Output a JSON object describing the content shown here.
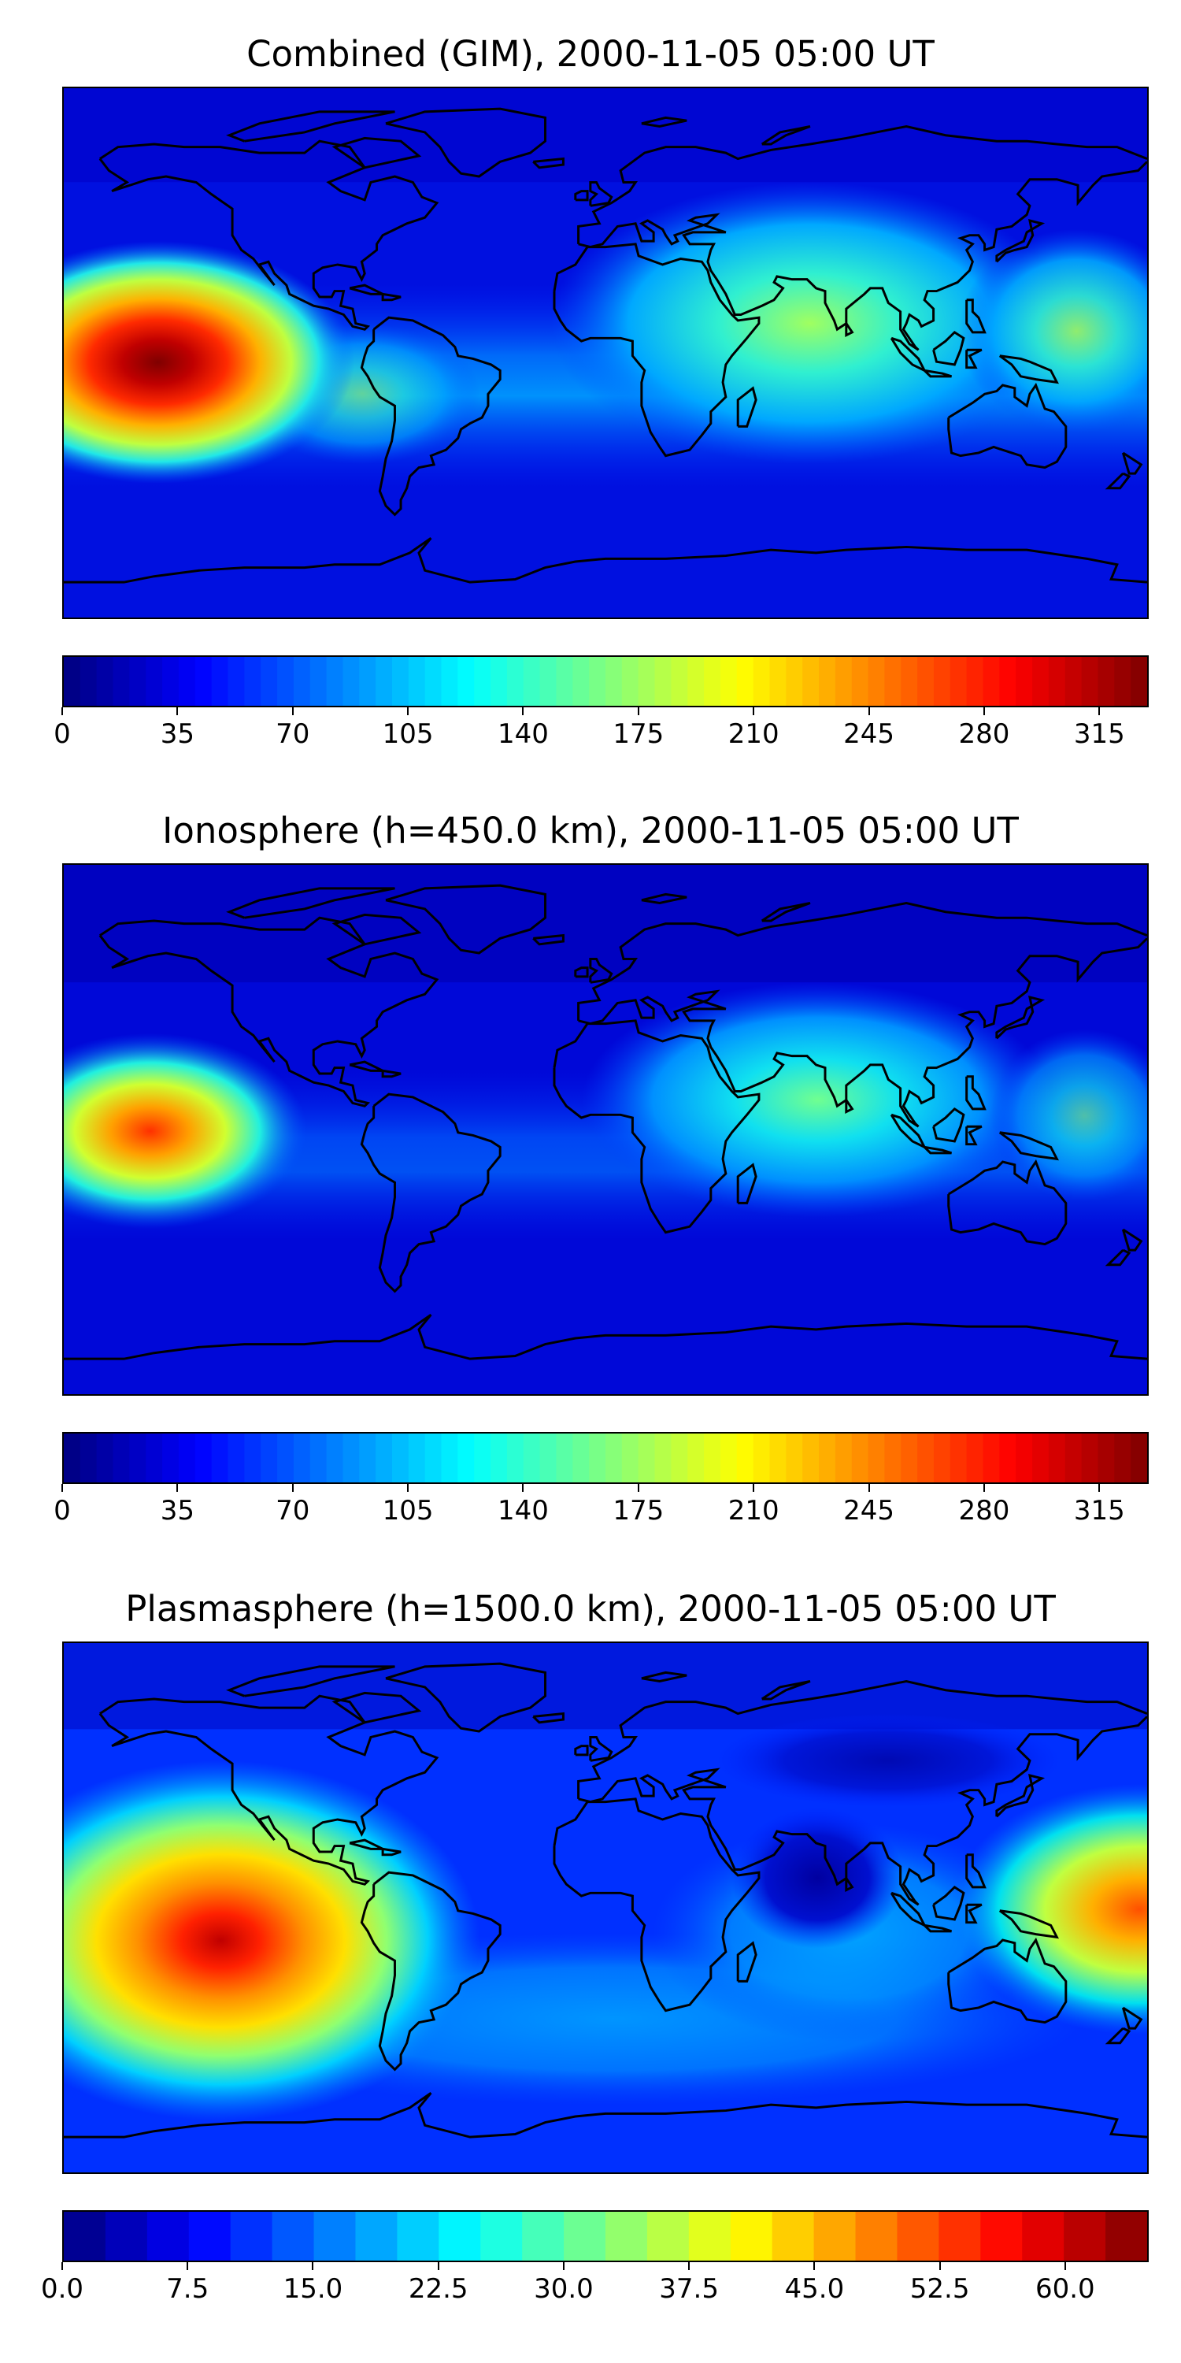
{
  "panels": [
    {
      "title": "Combined (GIM), 2000-11-05 05:00 UT",
      "colorbar_ticks": [
        "0",
        "35",
        "70",
        "105",
        "140",
        "175",
        "210",
        "245",
        "280",
        "315"
      ],
      "colorbar_range": [
        0,
        330
      ],
      "colorbar_levels": 66
    },
    {
      "title": "Ionosphere  (h=450.0 km), 2000-11-05 05:00 UT",
      "colorbar_ticks": [
        "0",
        "35",
        "70",
        "105",
        "140",
        "175",
        "210",
        "245",
        "280",
        "315"
      ],
      "colorbar_range": [
        0,
        330
      ],
      "colorbar_levels": 66
    },
    {
      "title": "Plasmasphere (h=1500.0 km), 2000-11-05 05:00 UT",
      "colorbar_ticks": [
        "0.0",
        "7.5",
        "15.0",
        "22.5",
        "30.0",
        "37.5",
        "45.0",
        "52.5",
        "60.0"
      ],
      "colorbar_range": [
        0,
        65
      ],
      "colorbar_levels": 26
    }
  ],
  "colormap": "jet",
  "map_projection": "equirectangular",
  "coastline_color": "#000000"
}
